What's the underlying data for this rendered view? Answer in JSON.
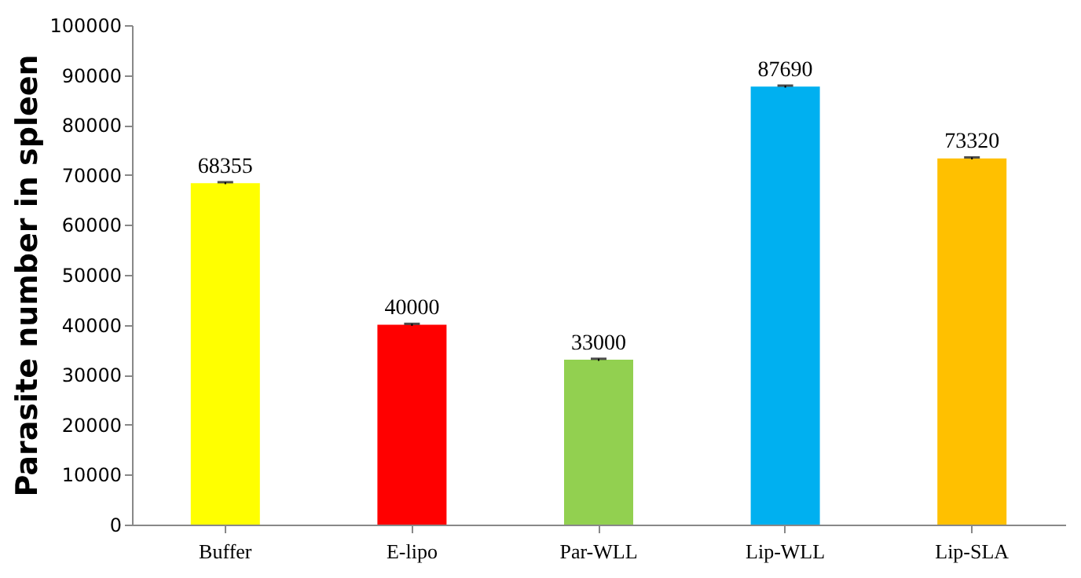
{
  "chart_data": {
    "type": "bar",
    "ylabel": "Parasite number in spleen",
    "categories": [
      "Buffer",
      "E-lipo",
      "Par-WLL",
      "Lip-WLL",
      "Lip-SLA"
    ],
    "values": [
      68355,
      40000,
      33000,
      87690,
      73320
    ],
    "colors": [
      "#ffff00",
      "#ff0000",
      "#92d050",
      "#00b0f0",
      "#ffc000"
    ],
    "errors": [
      200,
      200,
      200,
      200,
      200
    ],
    "ylim": [
      0,
      100000
    ],
    "yticks": [
      0,
      10000,
      20000,
      30000,
      40000,
      50000,
      60000,
      70000,
      80000,
      90000,
      100000
    ],
    "grid": false,
    "data_labels": true
  }
}
